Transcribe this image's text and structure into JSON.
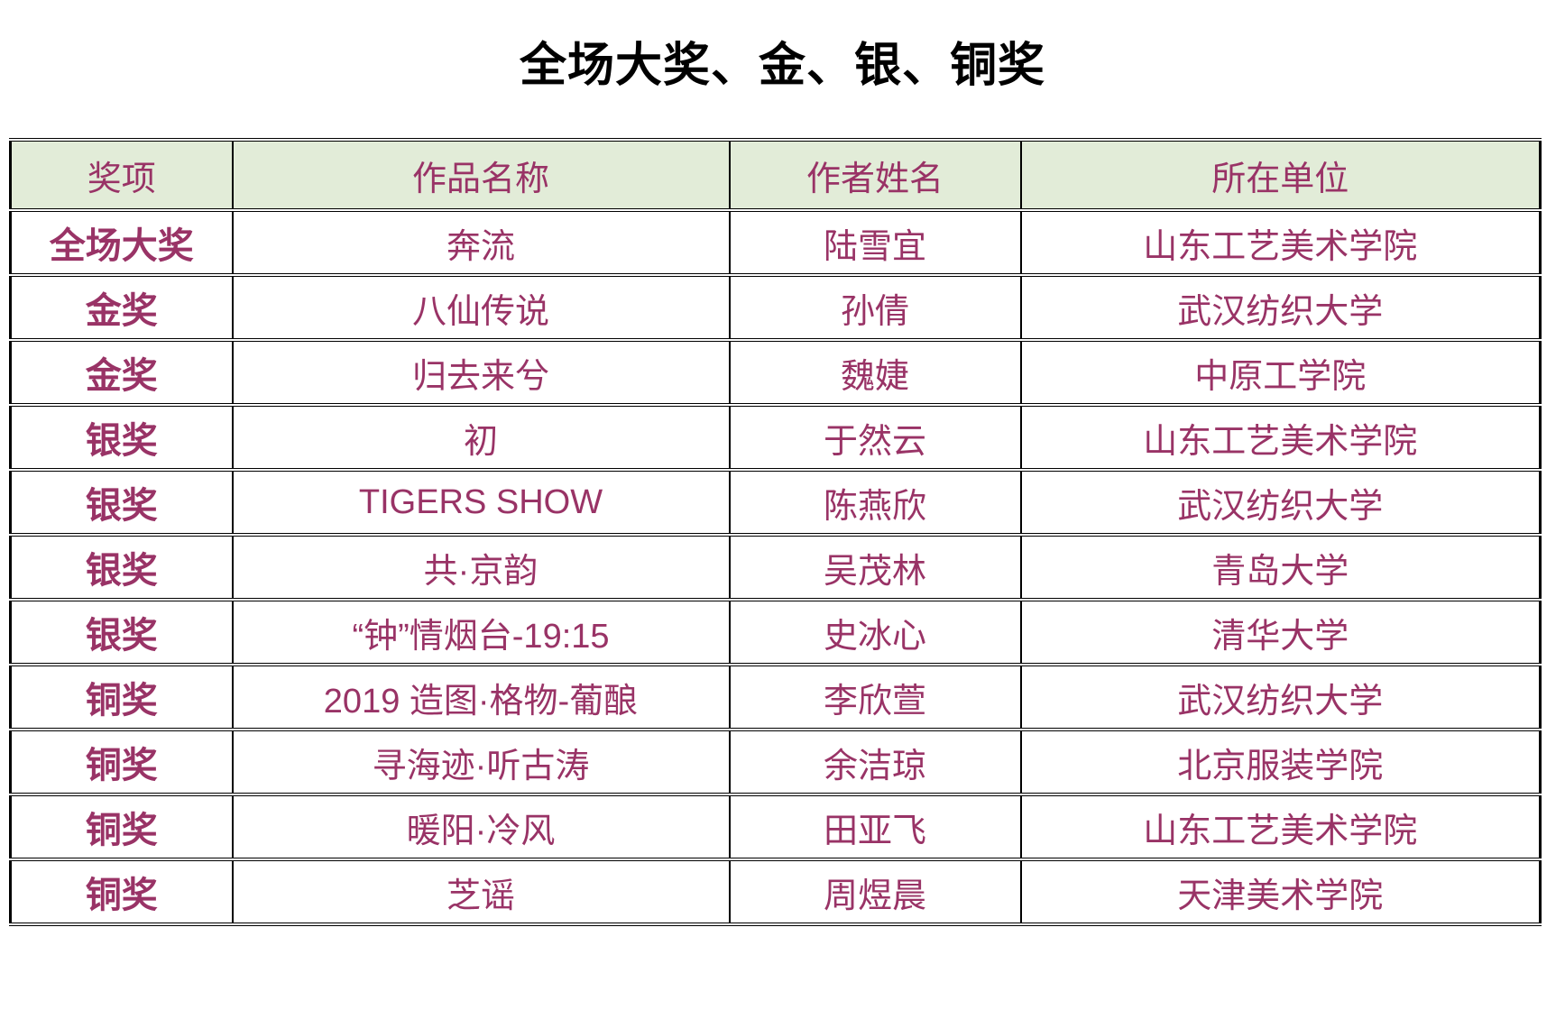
{
  "title": "全场大奖、金、银、铜奖",
  "colors": {
    "header_background": "#e2ecd8",
    "table_text": "#993366",
    "border": "#000000",
    "title_text": "#000000"
  },
  "table": {
    "headers": [
      "奖项",
      "作品名称",
      "作者姓名",
      "所在单位"
    ],
    "rows": [
      [
        "全场大奖",
        "奔流",
        "陆雪宜",
        "山东工艺美术学院"
      ],
      [
        "金奖",
        "八仙传说",
        "孙倩",
        "武汉纺织大学"
      ],
      [
        "金奖",
        "归去来兮",
        "魏婕",
        "中原工学院"
      ],
      [
        "银奖",
        "初",
        "于然云",
        "山东工艺美术学院"
      ],
      [
        "银奖",
        "TIGERS SHOW",
        "陈燕欣",
        "武汉纺织大学"
      ],
      [
        "银奖",
        "共·京韵",
        "吴茂林",
        "青岛大学"
      ],
      [
        "银奖",
        "“钟”情烟台-19:15",
        "史冰心",
        "清华大学"
      ],
      [
        "铜奖",
        "2019 造图·格物-葡酿",
        "李欣萱",
        "武汉纺织大学"
      ],
      [
        "铜奖",
        "寻海迹·听古涛",
        "余洁琼",
        "北京服装学院"
      ],
      [
        "铜奖",
        "暖阳·冷风",
        "田亚飞",
        "山东工艺美术学院"
      ],
      [
        "铜奖",
        "芝谣",
        "周煜晨",
        "天津美术学院"
      ]
    ]
  }
}
